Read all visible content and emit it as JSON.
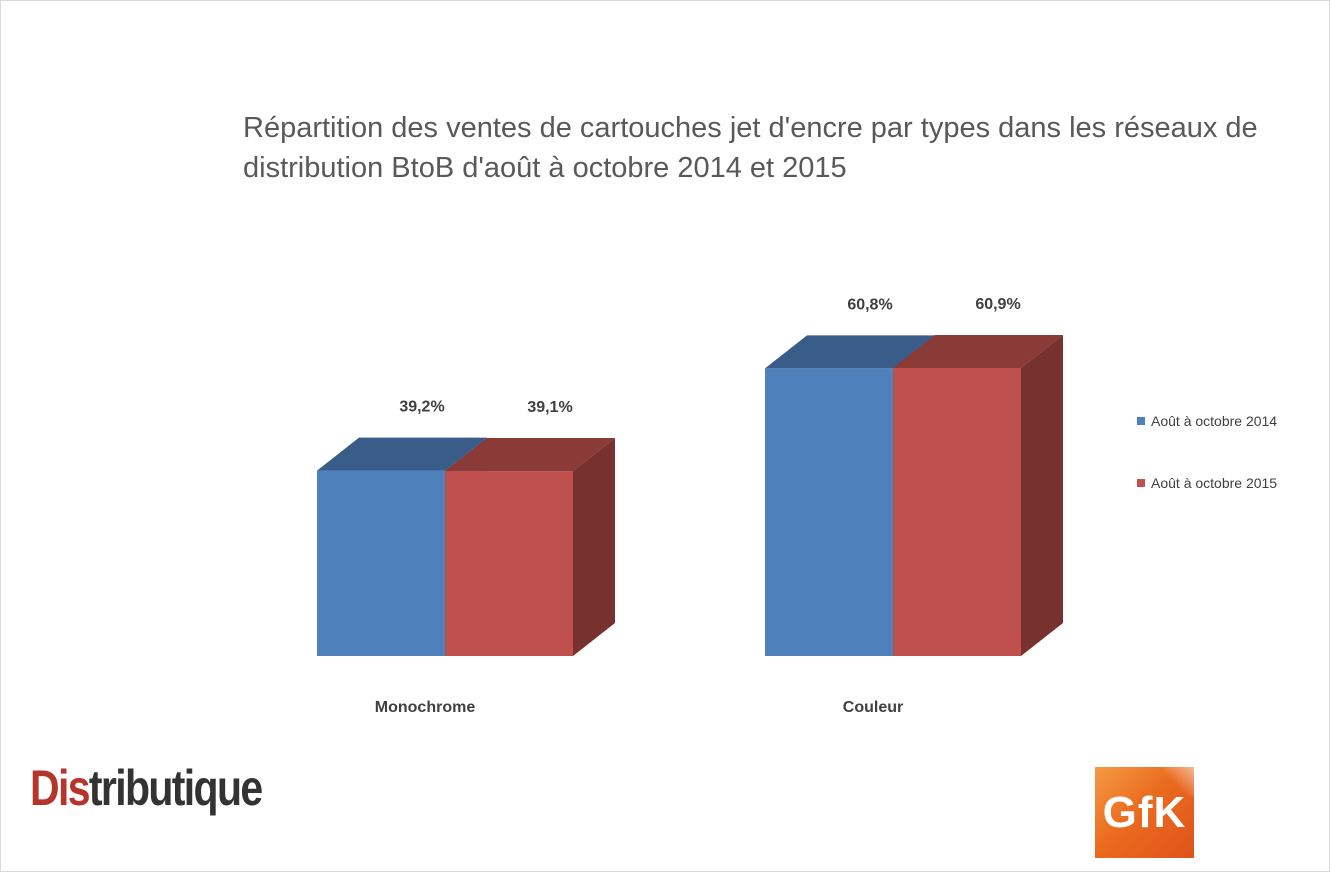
{
  "chart_data": {
    "type": "bar",
    "title": "Répartition des ventes de cartouches jet d'encre par types dans les réseaux de distribution BtoB d'août à octobre 2014 et 2015",
    "categories": [
      "Monochrome",
      "Couleur"
    ],
    "series": [
      {
        "name": "Août à octobre 2014",
        "values": [
          39.2,
          60.8
        ],
        "labels": [
          "39,2%",
          "60,8%"
        ],
        "color": "#4f81bd"
      },
      {
        "name": "Août à octobre 2015",
        "values": [
          39.1,
          60.9
        ],
        "labels": [
          "39,1%",
          "60,9%"
        ],
        "color": "#c0504d"
      }
    ],
    "ylabel": "",
    "xlabel": "",
    "grid": false,
    "legend": "right",
    "style": "3d-bar"
  },
  "logos": {
    "distributique": {
      "part1": "Dis",
      "part2": "tributique"
    },
    "gfk": "GfK"
  }
}
